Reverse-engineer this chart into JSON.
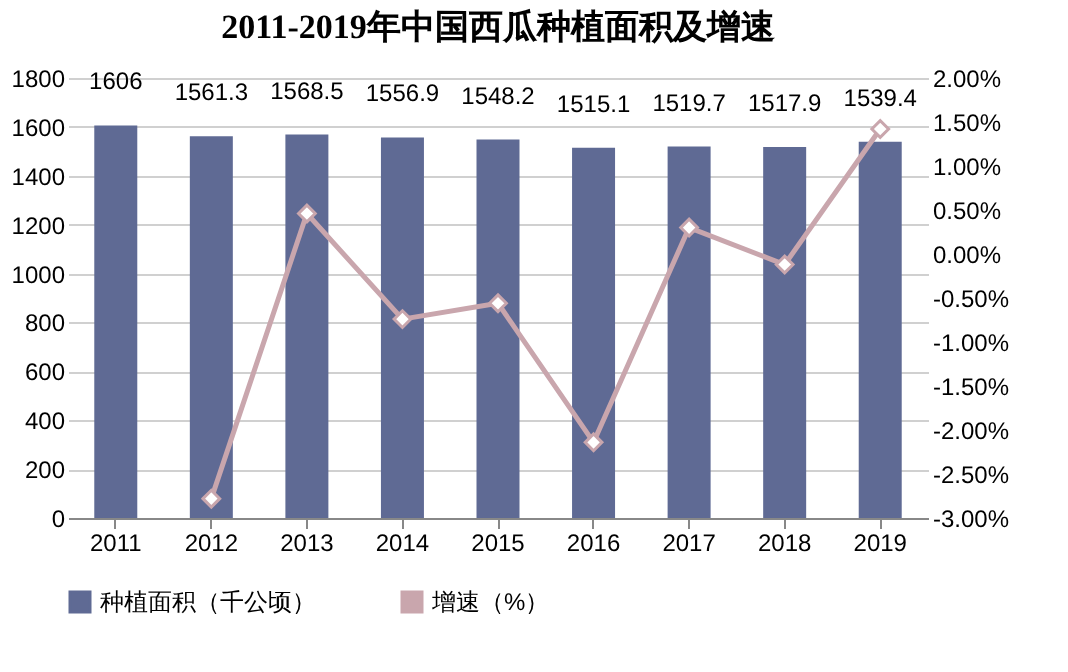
{
  "chart_data": {
    "type": "bar",
    "title": "2011-2019年中国西瓜种植面积及增速",
    "categories": [
      "2011",
      "2012",
      "2013",
      "2014",
      "2015",
      "2016",
      "2017",
      "2018",
      "2019"
    ],
    "series": [
      {
        "name": "种植面积（千公顷）",
        "color": "#5f6a94",
        "values": [
          1606,
          1561.3,
          1568.5,
          1556.9,
          1548.2,
          1515.1,
          1519.7,
          1517.9,
          1539.4
        ],
        "value_labels": [
          "1606",
          "1561.3",
          "1568.5",
          "1556.9",
          "1548.2",
          "1515.1",
          "1519.7",
          "1517.9",
          "1539.4"
        ]
      },
      {
        "name": "增速（%）",
        "type": "line",
        "axis": "y2",
        "color": "#c9a6ad",
        "marker": "diamond",
        "values": [
          null,
          -2.78,
          0.46,
          -0.74,
          -0.56,
          -2.14,
          0.3,
          -0.12,
          1.42
        ]
      }
    ],
    "ylim": [
      0,
      1800
    ],
    "yticks": [
      0,
      200,
      400,
      600,
      800,
      1000,
      1200,
      1400,
      1600,
      1800
    ],
    "y2lim": [
      -3,
      2
    ],
    "y2ticks": [
      {
        "value": -3,
        "label": "-3.00%"
      },
      {
        "value": -2.5,
        "label": "-2.50%"
      },
      {
        "value": -2,
        "label": "-2.00%"
      },
      {
        "value": -1.5,
        "label": "-1.50%"
      },
      {
        "value": -1,
        "label": "-1.00%"
      },
      {
        "value": -0.5,
        "label": "-0.50%"
      },
      {
        "value": 0,
        "label": "0.00%"
      },
      {
        "value": 0.5,
        "label": "0.50%"
      },
      {
        "value": 1,
        "label": "1.00%"
      },
      {
        "value": 1.5,
        "label": "1.50%"
      },
      {
        "value": 2,
        "label": "2.00%"
      }
    ],
    "grid": "y",
    "legend": "bottom"
  }
}
